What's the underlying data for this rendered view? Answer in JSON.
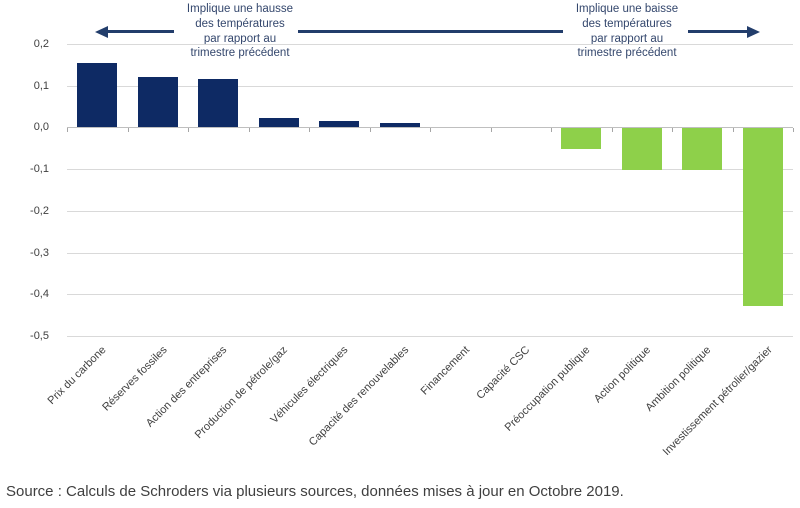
{
  "colors": {
    "navy": "#0e2a64",
    "green": "#8ed04a",
    "arrow": "#223d6b",
    "anntext": "#34476d",
    "grid": "#d9d9d9",
    "axis": "#bfbfbf",
    "tick": "#a6a6a6",
    "axistext": "#404040",
    "sourcetext": "#3f3f3f"
  },
  "annotations": {
    "increase": "Implique une hausse\ndes températures\npar rapport au\ntrimestre précédent",
    "decrease": "Implique une baisse\ndes températures\npar rapport au\ntrimestre précédent"
  },
  "source": "Source : Calculs de Schroders via plusieurs sources, données mises à jour en Octobre 2019.",
  "chart_data": {
    "type": "bar",
    "title": "",
    "xlabel": "",
    "ylabel": "",
    "categories": [
      "Prix du carbone",
      "Réserves fossiles",
      "Action des entreprises",
      "Production de pétrole/gaz",
      "Véhicules électriques",
      "Capacité des renouvelables",
      "Financement",
      "Capacité CSC",
      "Préoccupation publique",
      "Action politique",
      "Ambition politique",
      "Investissement pétrolier/gazier"
    ],
    "values": [
      0.155,
      0.12,
      0.115,
      0.022,
      0.016,
      0.01,
      0,
      0,
      -0.05,
      -0.1,
      -0.1,
      -0.425
    ],
    "positive_color": "#0e2a64",
    "negative_color": "#8ed04a",
    "ylim": [
      -0.5,
      0.2
    ],
    "ytick_step": 0.1,
    "ytick_labels": [
      "0,2",
      "0,1",
      "0,0",
      "-0,1",
      "-0,2",
      "-0,3",
      "-0,4",
      "-0,5"
    ],
    "grid": true,
    "legend": "none",
    "number_format": "comma-decimal"
  }
}
